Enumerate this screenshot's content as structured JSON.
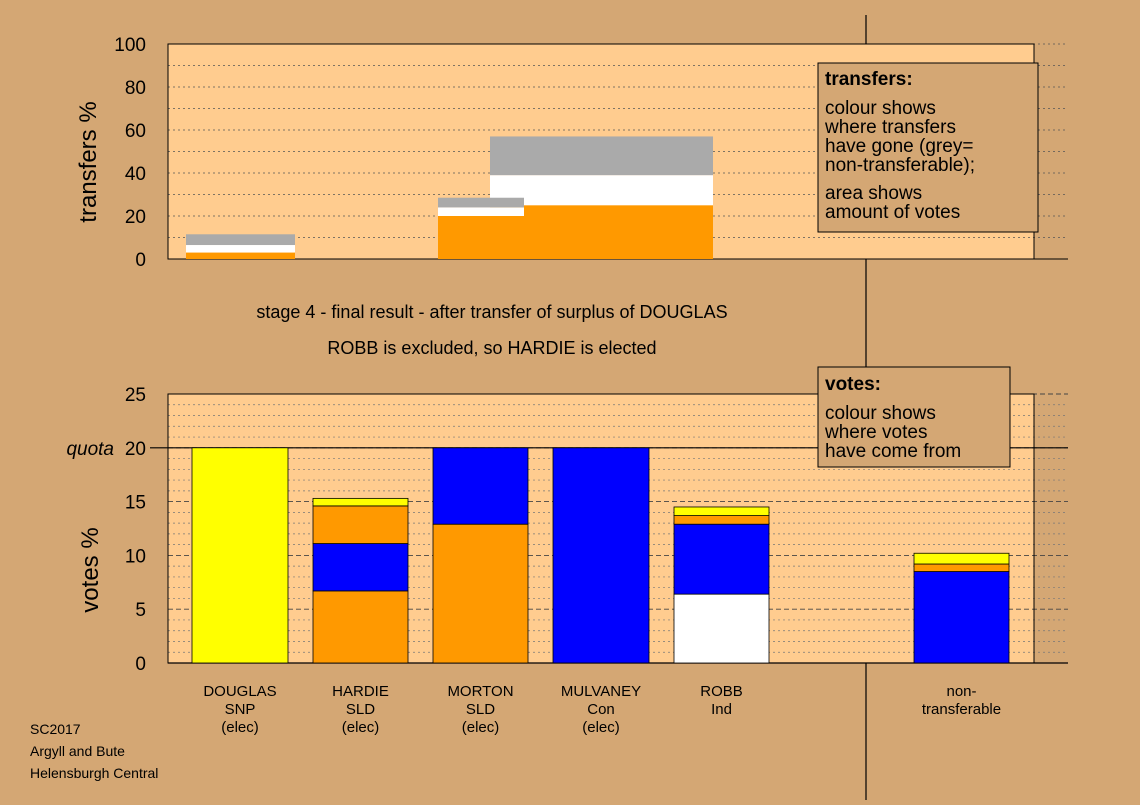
{
  "colors": {
    "background": "#d4a774",
    "plot_area": "#ffcc8f",
    "yellow": "#ffff00",
    "orange": "#ff9900",
    "blue": "#0000ff",
    "white": "#ffffff",
    "grey": "#aaaaaa"
  },
  "caption": {
    "line1": "stage 4 - final result - after transfer of surplus of DOUGLAS",
    "line2": "ROBB is excluded, so HARDIE is elected"
  },
  "footer": {
    "line1": "SC2017",
    "line2": "Argyll and Bute",
    "line3": "Helensburgh Central"
  },
  "transfers_box": {
    "title": "transfers:",
    "lines": [
      "colour shows",
      "where transfers",
      "have gone (grey=",
      "non-transferable);",
      "area shows",
      "amount of votes"
    ]
  },
  "votes_box": {
    "title": "votes:",
    "lines": [
      "colour shows",
      "where votes",
      "have come from"
    ]
  },
  "chart_data": [
    {
      "type": "bar",
      "stacked": true,
      "ylabel": "transfers %",
      "ylim": [
        0,
        100
      ],
      "yticks": [
        0,
        20,
        40,
        60,
        80,
        100
      ],
      "grid": true,
      "bars": [
        {
          "segments": [
            {
              "color": "orange",
              "value": 3
            },
            {
              "color": "white",
              "value": 3.5
            },
            {
              "color": "grey",
              "value": 5
            }
          ]
        },
        {
          "segments": [
            {
              "color": "orange",
              "value": 20
            },
            {
              "color": "white",
              "value": 4
            },
            {
              "color": "grey",
              "value": 4.5
            }
          ]
        },
        {
          "segments": [
            {
              "color": "orange",
              "value": 25
            },
            {
              "color": "white",
              "value": 14
            },
            {
              "color": "grey",
              "value": 18
            }
          ]
        }
      ]
    },
    {
      "type": "bar",
      "stacked": true,
      "ylabel": "votes %",
      "ylim": [
        0,
        25
      ],
      "yticks": [
        0,
        5,
        10,
        15,
        20,
        25
      ],
      "quota": {
        "label": "quota",
        "value": 20
      },
      "grid": true,
      "categories": [
        [
          "DOUGLAS",
          "SNP",
          "(elec)"
        ],
        [
          "HARDIE",
          "SLD",
          "(elec)"
        ],
        [
          "MORTON",
          "SLD",
          "(elec)"
        ],
        [
          "MULVANEY",
          "Con",
          "(elec)"
        ],
        [
          "ROBB",
          "Ind",
          ""
        ],
        [
          "non-",
          "transferable",
          ""
        ]
      ],
      "series_order": [
        "white",
        "orange",
        "blue",
        "yellow"
      ],
      "values": [
        {
          "white": 0,
          "orange": 0,
          "blue": 0,
          "yellow": 20
        },
        {
          "white": 0,
          "orange": 6.7,
          "blue": 4.4,
          "yellow": 0.7,
          "orange2": 3.5
        },
        {
          "white": 0,
          "orange": 12.9,
          "blue": 7.1,
          "yellow": 0
        },
        {
          "white": 0,
          "orange": 0,
          "blue": 20,
          "yellow": 0
        },
        {
          "white": 6.4,
          "orange": 0,
          "blue": 6.5,
          "orange2": 0.8,
          "yellow": 0.8
        },
        {
          "white": 0,
          "orange": 0,
          "blue": 8.5,
          "orange2": 0.7,
          "yellow": 1.0
        }
      ]
    }
  ]
}
